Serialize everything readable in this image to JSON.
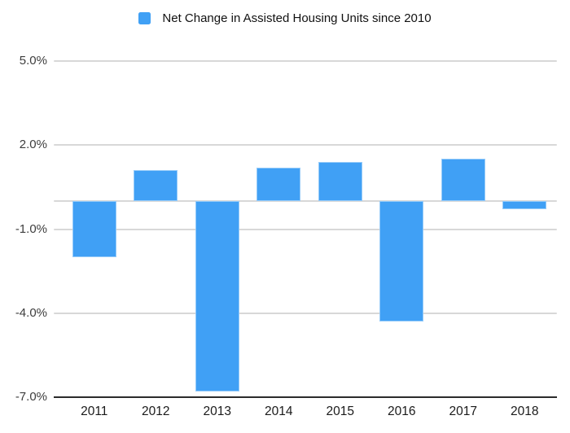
{
  "chart_data": {
    "type": "bar",
    "title": "Net Change in Assisted Housing Units since 2010",
    "legend": {
      "position": "top",
      "entries": [
        {
          "label": "Net Change in Assisted Housing Units since 2010",
          "color": "#40A0F5"
        }
      ]
    },
    "categories": [
      "2011",
      "2012",
      "2013",
      "2014",
      "2015",
      "2016",
      "2017",
      "2018"
    ],
    "series": [
      {
        "name": "Net Change in Assisted Housing Units since 2010",
        "values": [
          -2.0,
          1.1,
          -6.8,
          1.2,
          1.4,
          -4.3,
          1.5,
          -0.3
        ]
      }
    ],
    "xlabel": "",
    "ylabel": "",
    "ylim": [
      -7.0,
      5.0
    ],
    "yticks": [
      {
        "value": 5.0,
        "label": "5.0%"
      },
      {
        "value": 2.0,
        "label": "2.0%"
      },
      {
        "value": -1.0,
        "label": "-1.0%"
      },
      {
        "value": -4.0,
        "label": "-4.0%"
      },
      {
        "value": -7.0,
        "label": "-7.0%"
      }
    ],
    "grid": "horizontal",
    "zero_line": true,
    "bar_color": "#40A0F5",
    "colors": {
      "gridline": "#D8D8D8",
      "axis_line": "#2B2B2B",
      "y_label_text": "#3D3D3D",
      "x_label_text": "#1A1A1A",
      "background": "#FFFFFF"
    }
  }
}
